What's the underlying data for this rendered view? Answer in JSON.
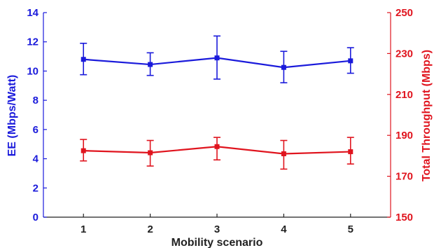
{
  "chart_data": {
    "type": "line",
    "title": "",
    "xlabel": "Mobility scenario",
    "ylabel": "EE (Mbps/Watt)",
    "y2label": "Total Throughput (Mbps)",
    "x": [
      1,
      2,
      3,
      4,
      5
    ],
    "xlim": [
      0.4,
      5.6
    ],
    "ylim": [
      0,
      14
    ],
    "yticks": [
      0,
      2,
      4,
      6,
      8,
      10,
      12,
      14
    ],
    "y2lim": [
      150,
      250
    ],
    "y2ticks": [
      150,
      170,
      190,
      210,
      230,
      250
    ],
    "colors": {
      "left": "#1a1adb",
      "right": "#e0141e",
      "axis_x": "#222222"
    },
    "series": [
      {
        "axis": "left",
        "color": "#1a1adb",
        "marker": "square",
        "values": [
          10.8,
          10.45,
          10.9,
          10.25,
          10.7
        ],
        "err_low": [
          9.75,
          9.7,
          9.45,
          9.2,
          9.85
        ],
        "err_high": [
          11.9,
          11.25,
          12.4,
          11.35,
          11.6
        ]
      },
      {
        "axis": "right",
        "color": "#e0141e",
        "marker": "square",
        "values": [
          182.5,
          181.5,
          184.5,
          181,
          182
        ],
        "err_low": [
          177.5,
          175,
          178,
          173.5,
          176
        ],
        "err_high": [
          188,
          187.5,
          189,
          187.5,
          189
        ]
      }
    ]
  }
}
